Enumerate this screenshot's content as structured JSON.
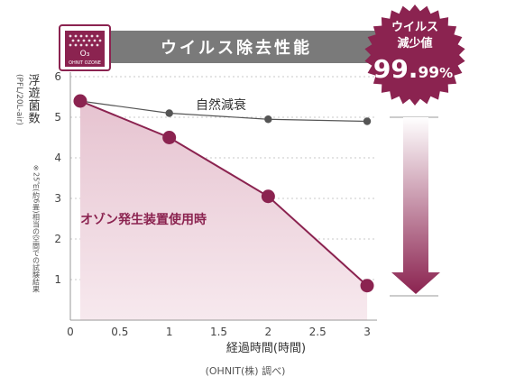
{
  "header": {
    "title": "ウイルス除去性能",
    "logo_symbol": "O₃",
    "logo_text": "OHNIT OZONE"
  },
  "badge": {
    "line1": "ウイルス",
    "line2": "減少値",
    "value_main": "99.",
    "value_decimal": "99",
    "value_unit": "%"
  },
  "colors": {
    "ozone_series": "#8b2350",
    "natural_series": "#555555",
    "header_bar": "#7a7a7a",
    "badge": "#8b2350"
  },
  "chart_data": {
    "type": "line",
    "ylabel": "浮遊菌数",
    "ylabel_unit": "(PFL/20L-air)",
    "ylabel_note": "※25㎥(約6畳)相当の空間での試験結果",
    "xlabel": "経過時間(時間)",
    "source": "(OHNIT(株) 調べ)",
    "xlim": [
      0,
      3.1
    ],
    "ylim": [
      0,
      6
    ],
    "x_ticks": [
      0,
      0.5,
      1,
      1.5,
      2,
      2.5,
      3
    ],
    "x_tick_labels": [
      "0",
      "0.5",
      "1",
      "1.5",
      "2",
      "2.5",
      "3"
    ],
    "y_ticks": [
      1,
      2,
      3,
      4,
      5,
      6
    ],
    "y_tick_labels": [
      "1",
      "2",
      "3",
      "4",
      "5",
      "6"
    ],
    "grid": true,
    "series": [
      {
        "name": "自然減衰",
        "x": [
          0.1,
          1,
          2,
          3
        ],
        "y": [
          5.4,
          5.1,
          4.95,
          4.9
        ]
      },
      {
        "name": "オゾン発生装置使用時",
        "x": [
          0.1,
          1,
          2,
          3
        ],
        "y": [
          5.4,
          4.5,
          3.05,
          0.85
        ]
      }
    ]
  }
}
